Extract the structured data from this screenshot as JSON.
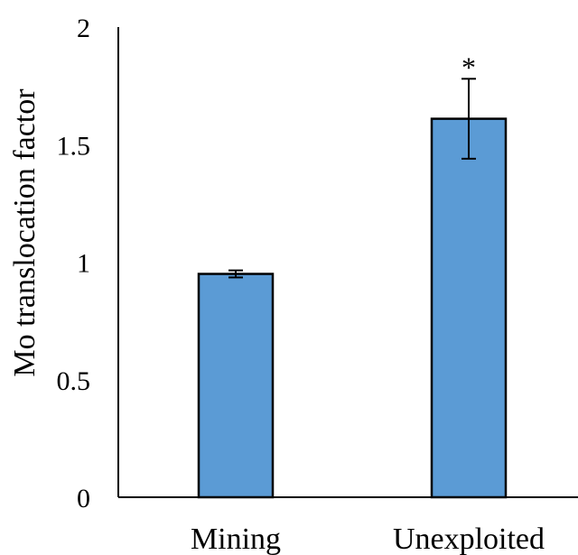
{
  "chart_data": {
    "type": "bar",
    "title": "",
    "xlabel": "",
    "ylabel": "Mo translocation factor",
    "categories": [
      "Mining",
      "Unexploited"
    ],
    "values": [
      0.95,
      1.61
    ],
    "errors": [
      0.015,
      0.17
    ],
    "annotations": [
      "",
      "*"
    ],
    "ylim": [
      0,
      2
    ],
    "yticks": [
      "0",
      "0.5",
      "1",
      "1.5",
      "2"
    ],
    "grid": false,
    "legend": "none",
    "bar_color": "#5b9bd5",
    "bar_edge_color": "#000000"
  }
}
